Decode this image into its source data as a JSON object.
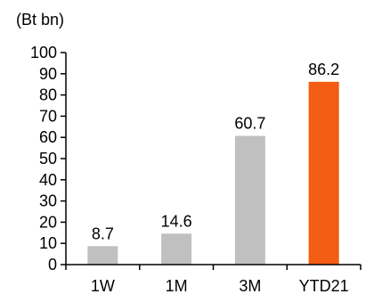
{
  "chart_data": {
    "type": "bar",
    "unit_label": "(Bt bn)",
    "categories": [
      "1W",
      "1M",
      "3M",
      "YTD21"
    ],
    "values": [
      8.7,
      14.6,
      60.7,
      86.2
    ],
    "value_labels": [
      "8.7",
      "14.6",
      "60.7",
      "86.2"
    ],
    "ylim": [
      0,
      100
    ],
    "yticks": [
      "0",
      "10",
      "20",
      "30",
      "40",
      "50",
      "60",
      "70",
      "80",
      "90",
      "100"
    ],
    "grid": false,
    "bar_colors": [
      "#c0c0c0",
      "#c0c0c0",
      "#c0c0c0",
      "#f25c13"
    ],
    "axis_color": "#000000"
  }
}
